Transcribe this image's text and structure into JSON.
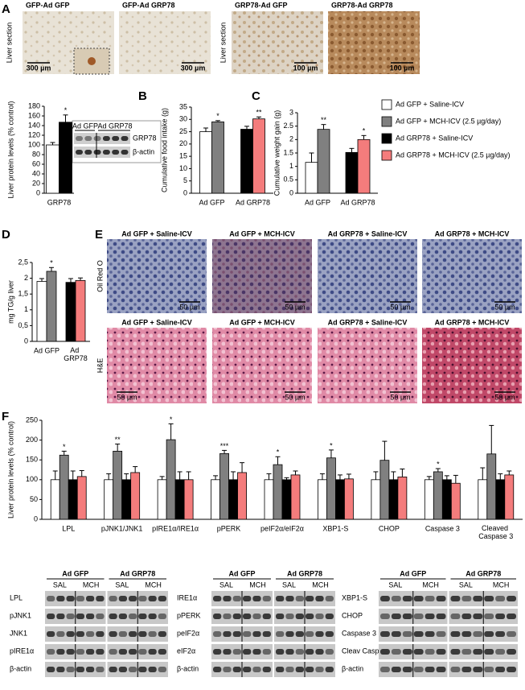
{
  "figure": {
    "panel_labels": [
      "A",
      "B",
      "C",
      "D",
      "E",
      "F"
    ],
    "panel_a": {
      "row_labels": [
        "Liver section",
        "Liver section"
      ],
      "images": [
        {
          "title": "GFP-Ad GFP",
          "scale": "300 µm"
        },
        {
          "title": "GFP-Ad GRP78",
          "scale": "300 µm"
        },
        {
          "title": "GRP78-Ad GFP",
          "scale": "100 µm"
        },
        {
          "title": "GRP78-Ad GRP78",
          "scale": "100 µm"
        }
      ]
    },
    "blot_inset": {
      "columns": [
        "Ad GFP",
        "Ad GRP78"
      ],
      "rows": [
        "GRP78",
        "β-actin"
      ]
    },
    "panel_e": {
      "rows": [
        {
          "label": "Oil Red O",
          "titles": [
            "Ad GFP + Saline-ICV",
            "Ad GFP + MCH-ICV",
            "Ad GRP78 + Saline-ICV",
            "Ad GRP78 + MCH-ICV"
          ],
          "scales": [
            "50 µm",
            "50 µm",
            "50 µm",
            "50 µm"
          ]
        },
        {
          "label": "H&E",
          "titles": [
            "Ad GFP + Saline-ICV",
            "Ad GFP + MCH-ICV",
            "Ad GRP78 + Saline-ICV",
            "Ad GRP78 + MCH-ICV"
          ],
          "scales": [
            "50 µm",
            "50 µm",
            "50 µm",
            "50 µm"
          ]
        }
      ]
    },
    "blots": [
      {
        "columns": [
          "Ad GFP",
          "Ad GRP78"
        ],
        "lanes": [
          "SAL",
          "MCH",
          "SAL",
          "MCH"
        ],
        "rows": [
          "LPL",
          "pJNK1",
          "JNK1",
          "pIRE1α",
          "β-actin"
        ]
      },
      {
        "columns": [
          "Ad GFP",
          "Ad GRP78"
        ],
        "lanes": [
          "SAL",
          "MCH",
          "SAL",
          "MCH"
        ],
        "rows": [
          "IRE1α",
          "pPERK",
          "peIF2α",
          "eIF2α",
          "β-actin"
        ]
      },
      {
        "columns": [
          "Ad GFP",
          "Ad GRP78"
        ],
        "lanes": [
          "SAL",
          "MCH",
          "SAL",
          "MCH"
        ],
        "rows": [
          "XBP1-S",
          "CHOP",
          "Caspase 3",
          "Cleav Casp 3",
          "β-actin"
        ]
      }
    ]
  },
  "chart_data": [
    {
      "type": "bar",
      "ylabel": "Liver protein levels (% control)",
      "categories": [
        "GRP78"
      ],
      "ylim": [
        0,
        180
      ],
      "yticks": [
        0,
        20,
        40,
        60,
        80,
        100,
        120,
        140,
        160,
        180
      ],
      "series": [
        {
          "color": "#ffffff",
          "values": [
            100
          ],
          "errors": [
            5
          ]
        },
        {
          "color": "#000000",
          "values": [
            147
          ],
          "errors": [
            15
          ],
          "stars": [
            "*"
          ]
        }
      ]
    },
    {
      "type": "bar",
      "ylabel": "Cumulative food intake (g)",
      "categories": [
        "Ad GFP",
        "Ad GRP78"
      ],
      "ylim": [
        0,
        35
      ],
      "yticks": [
        0,
        5,
        10,
        15,
        20,
        25,
        30,
        35
      ],
      "series": [
        {
          "name": "Ad GFP + Saline-ICV",
          "color": "#ffffff",
          "values": [
            25,
            null
          ],
          "errors": [
            1.5,
            null
          ]
        },
        {
          "name": "Ad GFP + MCH-ICV (2.5 µg/day)",
          "color": "#808080",
          "values": [
            29,
            null
          ],
          "errors": [
            0.5,
            null
          ],
          "stars": [
            "*",
            null
          ]
        },
        {
          "name": "Ad GRP78 + Saline-ICV",
          "color": "#000000",
          "values": [
            null,
            26
          ],
          "errors": [
            null,
            1.2
          ]
        },
        {
          "name": "Ad GRP78 + MCH-ICV (2.5 µg/day)",
          "color": "#f47c7c",
          "values": [
            null,
            30.2
          ],
          "errors": [
            null,
            0.8
          ],
          "stars": [
            null,
            "**"
          ]
        }
      ]
    },
    {
      "type": "bar",
      "ylabel": "Cumulative weight gain (g)",
      "categories": [
        "Ad GFP",
        "Ad GRP78"
      ],
      "ylim": [
        0,
        3
      ],
      "yticks": [
        0,
        0.5,
        1,
        1.5,
        2,
        2.5,
        3
      ],
      "series": [
        {
          "color": "#ffffff",
          "values": [
            1.15,
            null
          ],
          "errors": [
            0.35,
            null
          ]
        },
        {
          "color": "#808080",
          "values": [
            2.38,
            null
          ],
          "errors": [
            0.18,
            null
          ],
          "stars": [
            "**",
            null
          ]
        },
        {
          "color": "#000000",
          "values": [
            null,
            1.52
          ],
          "errors": [
            null,
            0.15
          ]
        },
        {
          "color": "#f47c7c",
          "values": [
            null,
            2.0
          ],
          "errors": [
            null,
            0.15
          ],
          "stars": [
            null,
            "*"
          ]
        }
      ]
    },
    {
      "type": "bar",
      "ylabel": "mg TG/g liver",
      "categories": [
        "Ad GFP",
        "Ad GRP78"
      ],
      "ylim": [
        0,
        2.5
      ],
      "yticks": [
        0,
        {
          "value": 0.5,
          "label": "0,5"
        },
        1,
        {
          "value": 1.5,
          "label": "1,5"
        },
        2,
        {
          "value": 2.5,
          "label": "2,5"
        }
      ],
      "series": [
        {
          "color": "#ffffff",
          "values": [
            1.9,
            null
          ],
          "errors": [
            0.09,
            null
          ]
        },
        {
          "color": "#808080",
          "values": [
            2.22,
            null
          ],
          "errors": [
            0.12,
            null
          ],
          "stars": [
            "*",
            null
          ]
        },
        {
          "color": "#000000",
          "values": [
            null,
            1.87
          ],
          "errors": [
            null,
            0.12
          ]
        },
        {
          "color": "#f47c7c",
          "values": [
            null,
            1.93
          ],
          "errors": [
            null,
            0.08
          ]
        }
      ]
    },
    {
      "type": "bar",
      "ylabel": "Liver protein levels (% control)",
      "categories": [
        "LPL",
        "pJNK1/JNK1",
        "pIRE1α/IRE1α",
        "pPERK",
        "peIF2α/eIF2α",
        "XBP1-S",
        "CHOP",
        "Caspase 3",
        "Cleaved Caspase 3"
      ],
      "ylim": [
        0,
        250
      ],
      "yticks": [
        0,
        50,
        100,
        150,
        200,
        250
      ],
      "series": [
        {
          "color": "#ffffff",
          "values": [
            100,
            100,
            100,
            100,
            100,
            100,
            100,
            100,
            100
          ],
          "errors": [
            22,
            15,
            8,
            10,
            15,
            15,
            20,
            8,
            30
          ]
        },
        {
          "color": "#808080",
          "values": [
            162,
            172,
            201,
            166,
            138,
            155,
            149,
            120,
            165
          ],
          "errors": [
            10,
            18,
            40,
            8,
            20,
            20,
            48,
            8,
            72
          ],
          "stars": [
            "*",
            "**",
            "*",
            "***",
            "*",
            "*",
            null,
            "*",
            null
          ]
        },
        {
          "color": "#000000",
          "values": [
            100,
            100,
            100,
            100,
            100,
            100,
            100,
            100,
            100
          ],
          "errors": [
            22,
            15,
            20,
            20,
            5,
            12,
            20,
            10,
            15
          ]
        },
        {
          "color": "#f47c7c",
          "values": [
            108,
            118,
            100,
            118,
            112,
            102,
            107,
            91,
            112
          ],
          "errors": [
            15,
            15,
            20,
            25,
            10,
            12,
            20,
            20,
            10
          ]
        }
      ]
    }
  ]
}
